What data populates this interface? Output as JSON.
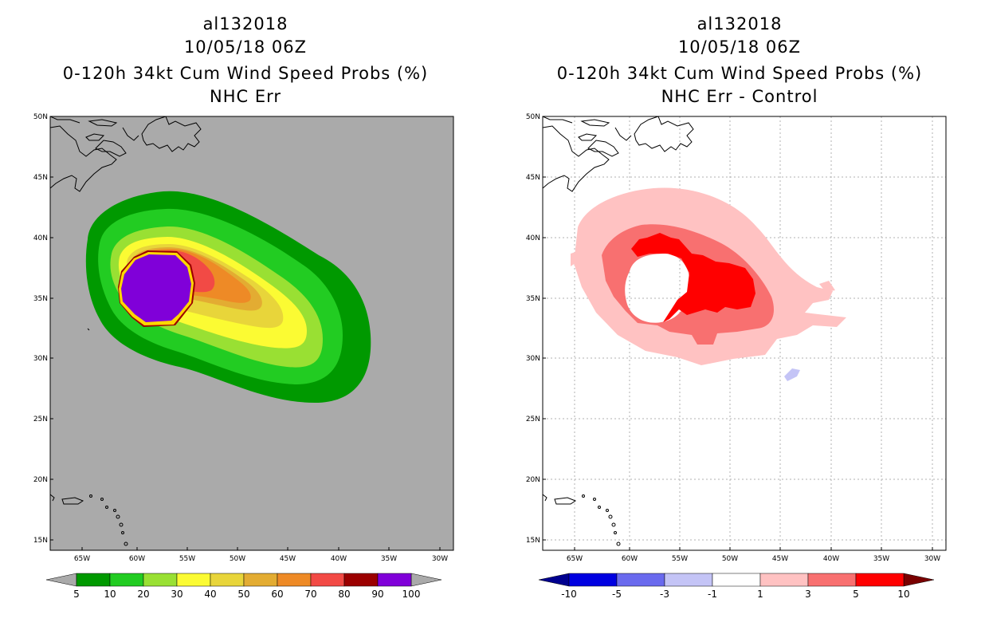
{
  "left": {
    "storm_id": "al132018",
    "datetime": "10/05/18 06Z",
    "product": "0-120h 34kt Cum Wind Speed Probs (%)",
    "subtitle": "NHC Err",
    "colorbar": {
      "labels": [
        "5",
        "10",
        "20",
        "30",
        "40",
        "50",
        "60",
        "70",
        "80",
        "90",
        "100"
      ],
      "colors": [
        "#009900",
        "#22cc22",
        "#99e033",
        "#fbfb33",
        "#e8d53a",
        "#e3ac32",
        "#ee8a26",
        "#f24a45",
        "#9b0000",
        "#8000d9"
      ]
    }
  },
  "right": {
    "storm_id": "al132018",
    "datetime": "10/05/18 06Z",
    "product": "0-120h 34kt Cum Wind Speed Probs (%)",
    "subtitle": "NHC Err - Control",
    "colorbar": {
      "labels": [
        "-10",
        "-5",
        "-3",
        "-1",
        "1",
        "3",
        "5",
        "10"
      ],
      "colors": [
        "#0000e0",
        "#6a6aee",
        "#c4c4f6",
        "#ffffff",
        "#ffc2c2",
        "#f87070",
        "#ff0000"
      ],
      "end_low": "#00008f",
      "end_high": "#7a0000"
    }
  },
  "axes": {
    "lat_labels": [
      "50N",
      "45N",
      "40N",
      "35N",
      "30N",
      "25N",
      "20N",
      "15N"
    ],
    "lon_labels": [
      "65W",
      "60W",
      "55W",
      "50W",
      "45W",
      "40W",
      "35W",
      "30W"
    ]
  }
}
